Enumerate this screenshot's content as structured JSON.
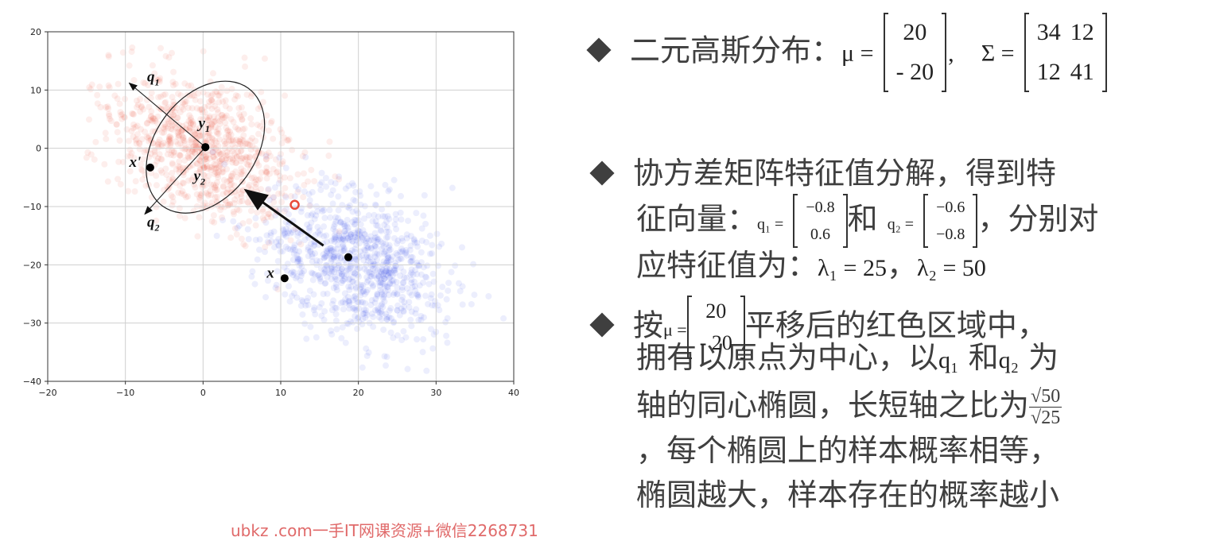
{
  "chart_data": {
    "type": "scatter",
    "xlim": [
      -20,
      40
    ],
    "ylim": [
      -40,
      20
    ],
    "x_ticks": [
      -20,
      -10,
      0,
      10,
      20,
      30,
      40
    ],
    "y_ticks": [
      20,
      10,
      0,
      -10,
      -20,
      -30,
      -40
    ],
    "grid": true,
    "series": [
      {
        "color": "#e8432f",
        "center": [
          0,
          0
        ],
        "cov": [
          [
            34,
            12
          ],
          [
            12,
            41
          ]
        ],
        "n": 900
      },
      {
        "color": "#2b3fe6",
        "center": [
          20,
          -20
        ],
        "cov": [
          [
            34,
            12
          ],
          [
            12,
            41
          ]
        ],
        "n": 900
      }
    ],
    "points": [
      {
        "label": "y",
        "sub": "1",
        "x": 0.3,
        "y": 0.2,
        "tx": -0.6,
        "ty": 3.5
      },
      {
        "label": "x'",
        "sub": "",
        "x": -6.8,
        "y": -3.3,
        "tx": -9.5,
        "ty": -3.2
      },
      {
        "label": "y",
        "sub": "2",
        "x": 0.3,
        "y": 0.2,
        "tx": -1.2,
        "ty": -5.6
      },
      {
        "label": "x",
        "sub": "",
        "x": 10.5,
        "y": -22.3,
        "tx": 8.2,
        "ty": -22.2
      },
      {
        "label": "",
        "sub": "",
        "x": 18.7,
        "y": -18.7,
        "tx": 0,
        "ty": 0
      }
    ],
    "axis_arrows": [
      {
        "label": "q",
        "sub": "1",
        "from": [
          0.3,
          0.2
        ],
        "to": [
          -9.5,
          11.2
        ],
        "tx": -7.2,
        "ty": 11.5
      },
      {
        "label": "q",
        "sub": "2",
        "from": [
          0.3,
          0.2
        ],
        "to": [
          -7.5,
          -11.3
        ],
        "tx": -7.2,
        "ty": -13.5
      }
    ],
    "ellipse": {
      "center": [
        0.3,
        0.2
      ],
      "rx_units": 6.5,
      "ry_units": 12.5,
      "angle_deg": -36
    },
    "translation_arrow": {
      "from": [
        15.5,
        -16.7
      ],
      "to": [
        5.5,
        -7.2
      ]
    },
    "red_marker": [
      11.8,
      -9.7
    ]
  },
  "text": {
    "b1_label": "二元高斯分布：",
    "mu_symbol": "μ =",
    "mu_values": [
      "20",
      "- 20"
    ],
    "sigma_symbol": "Σ =",
    "sigma_values": [
      [
        "34",
        "12"
      ],
      [
        "12",
        "41"
      ]
    ],
    "b2_line1": "协方差矩阵特征值分解，得到特",
    "b2_line2_a": "征向量：",
    "q1_symbol": "q₁ =",
    "q1_values": [
      "−0.8",
      "0.6"
    ],
    "he": "和",
    "q2_symbol": "q₂ =",
    "q2_values": [
      "−0.6",
      "−0.8"
    ],
    "b2_line2_b": "，分别对",
    "b2_line3_a": "应特征值为：",
    "lambda1": "λ₁ = 25",
    "comma": "，",
    "lambda2": "λ₂ = 50",
    "b3_line1_a": "按",
    "b3_mu_symbol": "μ =",
    "b3_mu_values": [
      "20",
      "- 20"
    ],
    "b3_line1_b": "平移后的红色区域中，",
    "b3_line2_a": "拥有以原点为中心，以",
    "b3_q1": "q₁",
    "b3_line2_b": "和",
    "b3_q2": "q₂",
    "b3_line2_c": "为",
    "b3_line3": "轴的同心椭圆，长短轴之比为",
    "ratio_num": "√50",
    "ratio_den": "√25",
    "b3_line4": "，每个椭圆上的样本概率相等，",
    "b3_line5": "椭圆越大，样本存在的概率越小",
    "watermark": "ubkz .com一手IT网课资源+微信2268731"
  }
}
